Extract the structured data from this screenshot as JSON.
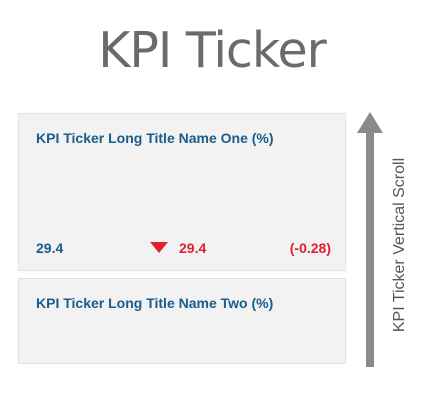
{
  "page": {
    "title": "KPI Ticker"
  },
  "kpis": [
    {
      "title": "KPI Ticker Long Title Name One (%)",
      "base_value": "29.4",
      "trend": "down",
      "current_value": "29.4",
      "change": "(-0.28)"
    },
    {
      "title": "KPI Ticker Long Title Name Two (%)"
    }
  ],
  "scroll": {
    "label": "KPI Ticker Vertical Scroll",
    "direction": "up"
  },
  "colors": {
    "title_text": "#6b6b6b",
    "kpi_title": "#1a5c8a",
    "negative": "#e0202e",
    "card_bg": "#f2f2f2",
    "arrow": "#8a8a8a"
  }
}
